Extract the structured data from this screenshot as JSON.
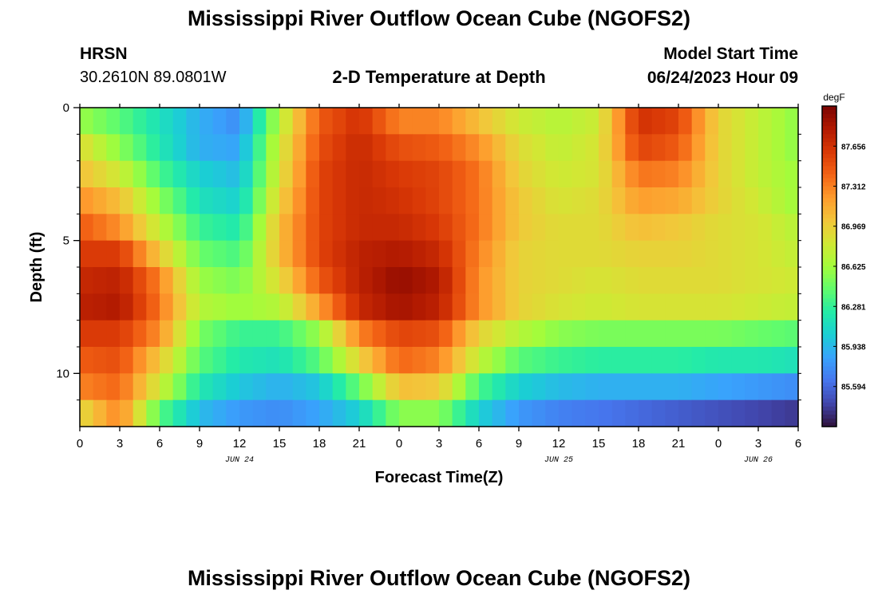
{
  "title": "Mississippi River Outflow Ocean Cube (NGOFS2)",
  "station": {
    "name": "HRSN",
    "location": "30.2610N  89.0801W"
  },
  "subtitle": "2-D Temperature at Depth",
  "model_start": {
    "label": "Model Start Time",
    "value": "06/24/2023 Hour 09"
  },
  "footer_title": "Mississippi River Outflow Ocean Cube (NGOFS2)",
  "colors": {
    "colormap": [
      "#30123b",
      "#4145ab",
      "#4675ed",
      "#39a2fc",
      "#1bcfd4",
      "#24eca6",
      "#61fc6c",
      "#a4fc3b",
      "#d1e834",
      "#f3c63a",
      "#fe9b2d",
      "#f36315",
      "#d93806",
      "#b11901",
      "#7a0402"
    ]
  },
  "chart_data": {
    "type": "heatmap",
    "xlabel": "Forecast Time(Z)",
    "ylabel": "Depth (ft)",
    "colorbar_unit": "degF",
    "colorbar_ticks": [
      85.594,
      85.938,
      86.281,
      86.625,
      86.969,
      87.312,
      87.656
    ],
    "colorbar_range": [
      85.25,
      88.0
    ],
    "x_range_hours": [
      0,
      54
    ],
    "x_ticks": [
      {
        "h": 0,
        "label": "0"
      },
      {
        "h": 3,
        "label": "3"
      },
      {
        "h": 6,
        "label": "6"
      },
      {
        "h": 9,
        "label": "9"
      },
      {
        "h": 12,
        "label": "12"
      },
      {
        "h": 15,
        "label": "15"
      },
      {
        "h": 18,
        "label": "18"
      },
      {
        "h": 21,
        "label": "21"
      },
      {
        "h": 24,
        "label": "0"
      },
      {
        "h": 27,
        "label": "3"
      },
      {
        "h": 30,
        "label": "6"
      },
      {
        "h": 33,
        "label": "9"
      },
      {
        "h": 36,
        "label": "12"
      },
      {
        "h": 39,
        "label": "15"
      },
      {
        "h": 42,
        "label": "18"
      },
      {
        "h": 45,
        "label": "21"
      },
      {
        "h": 48,
        "label": "0"
      },
      {
        "h": 51,
        "label": "3"
      },
      {
        "h": 54,
        "label": "6"
      }
    ],
    "date_labels": [
      {
        "h": 12,
        "label": "JUN 24"
      },
      {
        "h": 36,
        "label": "JUN 25"
      },
      {
        "h": 51,
        "label": "JUN 26"
      }
    ],
    "y_range_ft": [
      0,
      12
    ],
    "y_ticks": [
      {
        "v": 0,
        "label": "0"
      },
      {
        "v": 5,
        "label": "5"
      },
      {
        "v": 10,
        "label": "10"
      }
    ],
    "depth_layers": 12,
    "key_times_hours": [
      0,
      3,
      6,
      9,
      12,
      15,
      18,
      21,
      24,
      27,
      30,
      33,
      36,
      39,
      42,
      45,
      48,
      51,
      54
    ],
    "temperature_degF": [
      [
        86.6,
        86.4,
        86.15,
        85.9,
        85.75,
        86.7,
        87.45,
        87.65,
        87.3,
        87.3,
        87.05,
        86.8,
        86.7,
        86.8,
        87.65,
        87.55,
        86.95,
        86.75,
        86.55
      ],
      [
        86.9,
        86.55,
        86.2,
        85.9,
        85.85,
        86.8,
        87.5,
        87.7,
        87.5,
        87.45,
        87.25,
        86.9,
        86.75,
        86.85,
        87.55,
        87.45,
        86.95,
        86.75,
        86.55
      ],
      [
        87.05,
        86.8,
        86.35,
        86.05,
        85.95,
        86.85,
        87.55,
        87.7,
        87.6,
        87.55,
        87.35,
        86.95,
        86.8,
        86.85,
        87.35,
        87.3,
        86.95,
        86.75,
        86.6
      ],
      [
        87.25,
        87.05,
        86.55,
        86.15,
        86.05,
        86.95,
        87.55,
        87.7,
        87.65,
        87.55,
        87.35,
        87.0,
        86.85,
        86.9,
        87.2,
        87.15,
        86.95,
        86.8,
        86.6
      ],
      [
        87.45,
        87.25,
        86.75,
        86.3,
        86.2,
        87.05,
        87.55,
        87.7,
        87.7,
        87.6,
        87.35,
        87.0,
        86.9,
        86.9,
        87.05,
        87.0,
        86.9,
        86.85,
        86.7
      ],
      [
        87.6,
        87.6,
        87.0,
        86.45,
        86.35,
        87.05,
        87.55,
        87.75,
        87.8,
        87.7,
        87.3,
        86.95,
        86.9,
        86.9,
        86.95,
        86.95,
        86.9,
        86.85,
        86.75
      ],
      [
        87.7,
        87.75,
        87.3,
        86.6,
        86.5,
        86.9,
        87.45,
        87.75,
        87.9,
        87.8,
        87.25,
        86.95,
        86.9,
        86.85,
        86.9,
        86.9,
        86.9,
        86.85,
        86.8
      ],
      [
        87.75,
        87.8,
        87.35,
        86.7,
        86.6,
        86.7,
        87.2,
        87.7,
        87.85,
        87.75,
        87.25,
        86.95,
        86.85,
        86.8,
        86.85,
        86.85,
        86.85,
        86.8,
        86.75
      ],
      [
        87.6,
        87.6,
        87.25,
        86.5,
        86.3,
        86.3,
        86.6,
        87.3,
        87.55,
        87.5,
        86.95,
        86.7,
        86.55,
        86.5,
        86.5,
        86.5,
        86.5,
        86.45,
        86.4
      ],
      [
        87.45,
        87.5,
        87.0,
        86.4,
        86.2,
        86.15,
        86.4,
        86.95,
        87.4,
        87.3,
        86.75,
        86.4,
        86.3,
        86.25,
        86.25,
        86.25,
        86.2,
        86.2,
        86.15
      ],
      [
        87.3,
        87.4,
        86.8,
        86.2,
        86.0,
        85.9,
        86.0,
        86.45,
        87.05,
        87.0,
        86.35,
        86.05,
        85.95,
        85.9,
        85.9,
        85.9,
        85.85,
        85.8,
        85.75
      ],
      [
        86.9,
        87.3,
        86.4,
        85.95,
        85.8,
        85.75,
        85.85,
        86.05,
        86.55,
        86.55,
        86.05,
        85.8,
        85.7,
        85.65,
        85.6,
        85.55,
        85.5,
        85.45,
        85.4
      ]
    ]
  }
}
